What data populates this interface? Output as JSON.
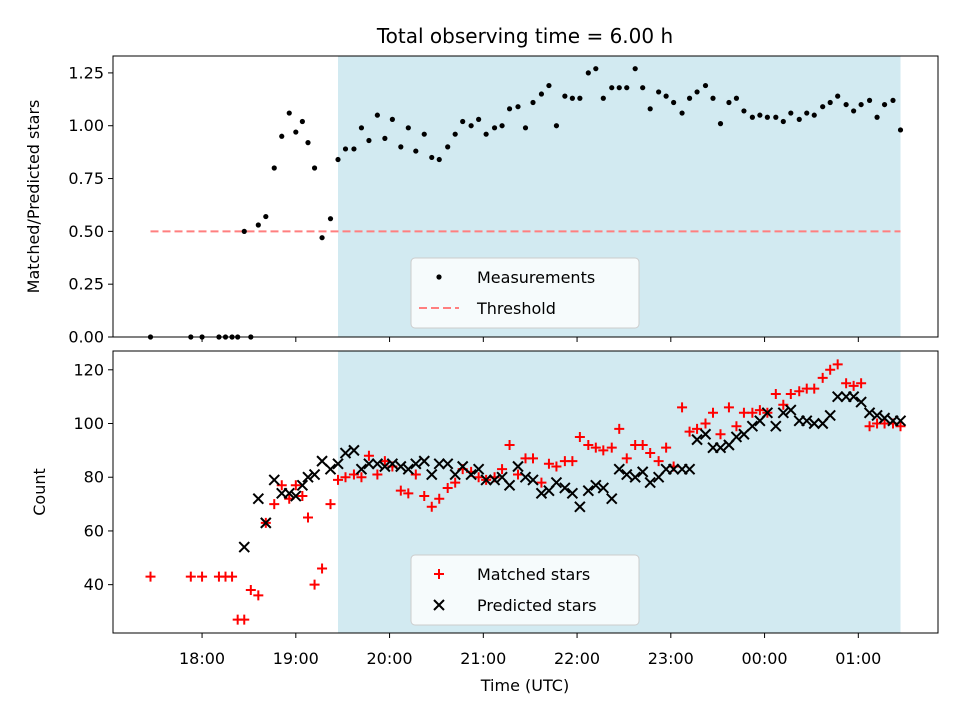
{
  "chart_data": {
    "title": "Total observing time = 6.00 h",
    "xlabel": "Time (UTC)",
    "x_ticks": [
      "18:00",
      "19:00",
      "20:00",
      "21:00",
      "22:00",
      "23:00",
      "00:00",
      "01:00"
    ],
    "x_range_hours": [
      17.05,
      25.85
    ],
    "shaded_span_hours": [
      19.45,
      25.45
    ],
    "shade_color": "#add8e6",
    "charts": [
      {
        "type": "scatter",
        "ylabel": "Matched/Predicted stars",
        "ylim": [
          0,
          1.33
        ],
        "yticks": [
          0.0,
          0.25,
          0.5,
          0.75,
          1.0,
          1.25
        ],
        "ytick_labels": [
          "0.00",
          "0.25",
          "0.50",
          "0.75",
          "1.00",
          "1.25"
        ],
        "legend_location": "lower-center",
        "threshold": {
          "name": "Threshold",
          "value": 0.5,
          "x_range": [
            17.45,
            25.45
          ],
          "color": "#ff7f7f"
        },
        "series": [
          {
            "name": "Measurements",
            "marker": "dot",
            "color": "#000000",
            "x": [
              17.45,
              17.88,
              18.0,
              18.18,
              18.25,
              18.32,
              18.38,
              18.45,
              18.52,
              18.6,
              18.68,
              18.77,
              18.85,
              18.93,
              19.0,
              19.07,
              19.13,
              19.2,
              19.28,
              19.37,
              19.45,
              19.53,
              19.62,
              19.7,
              19.78,
              19.87,
              19.95,
              20.03,
              20.12,
              20.2,
              20.28,
              20.37,
              20.45,
              20.53,
              20.62,
              20.7,
              20.78,
              20.87,
              20.95,
              21.03,
              21.12,
              21.2,
              21.28,
              21.37,
              21.45,
              21.53,
              21.62,
              21.7,
              21.78,
              21.87,
              21.95,
              22.03,
              22.12,
              22.2,
              22.28,
              22.37,
              22.45,
              22.53,
              22.62,
              22.7,
              22.78,
              22.87,
              22.95,
              23.03,
              23.12,
              23.2,
              23.28,
              23.37,
              23.45,
              23.53,
              23.62,
              23.7,
              23.78,
              23.87,
              23.95,
              24.03,
              24.12,
              24.2,
              24.28,
              24.37,
              24.45,
              24.53,
              24.62,
              24.7,
              24.78,
              24.87,
              24.95,
              25.03,
              25.12,
              25.2,
              25.28,
              25.37,
              25.45
            ],
            "y": [
              0.0,
              0.0,
              0.0,
              0.0,
              0.0,
              0.0,
              0.0,
              0.5,
              0.0,
              0.53,
              0.57,
              0.8,
              0.95,
              1.06,
              0.97,
              1.02,
              0.92,
              0.8,
              0.47,
              0.56,
              0.84,
              0.89,
              0.89,
              0.99,
              0.93,
              1.05,
              0.94,
              1.03,
              0.9,
              0.99,
              0.88,
              0.96,
              0.85,
              0.84,
              0.9,
              0.96,
              1.02,
              1.0,
              1.03,
              0.96,
              0.99,
              1.0,
              1.08,
              1.09,
              0.99,
              1.11,
              1.15,
              1.19,
              1.0,
              1.14,
              1.13,
              1.13,
              1.25,
              1.27,
              1.13,
              1.18,
              1.18,
              1.18,
              1.27,
              1.18,
              1.08,
              1.16,
              1.14,
              1.11,
              1.06,
              1.13,
              1.16,
              1.19,
              1.13,
              1.01,
              1.11,
              1.13,
              1.07,
              1.04,
              1.05,
              1.04,
              1.04,
              1.02,
              1.06,
              1.03,
              1.06,
              1.05,
              1.09,
              1.11,
              1.14,
              1.1,
              1.07,
              1.1,
              1.12,
              1.04,
              1.1,
              1.12,
              0.98
            ]
          }
        ]
      },
      {
        "type": "scatter",
        "ylabel": "Count",
        "ylim": [
          22,
          127
        ],
        "yticks": [
          40,
          60,
          80,
          100,
          120
        ],
        "ytick_labels": [
          "40",
          "60",
          "80",
          "100",
          "120"
        ],
        "legend_location": "lower-center",
        "series": [
          {
            "name": "Matched stars",
            "marker": "plus",
            "color": "#ff0000",
            "x": [
              17.45,
              17.88,
              18.0,
              18.18,
              18.25,
              18.32,
              18.38,
              18.45,
              18.52,
              18.6,
              18.68,
              18.77,
              18.85,
              18.93,
              19.0,
              19.07,
              19.13,
              19.2,
              19.28,
              19.37,
              19.45,
              19.53,
              19.62,
              19.7,
              19.78,
              19.87,
              19.95,
              20.03,
              20.12,
              20.2,
              20.28,
              20.37,
              20.45,
              20.53,
              20.62,
              20.7,
              20.78,
              20.87,
              20.95,
              21.03,
              21.12,
              21.2,
              21.28,
              21.37,
              21.45,
              21.53,
              21.62,
              21.7,
              21.78,
              21.87,
              21.95,
              22.03,
              22.12,
              22.2,
              22.28,
              22.37,
              22.45,
              22.53,
              22.62,
              22.7,
              22.78,
              22.87,
              22.95,
              23.03,
              23.12,
              23.2,
              23.28,
              23.37,
              23.45,
              23.53,
              23.62,
              23.7,
              23.78,
              23.87,
              23.95,
              24.03,
              24.12,
              24.2,
              24.28,
              24.37,
              24.45,
              24.53,
              24.62,
              24.7,
              24.78,
              24.87,
              24.95,
              25.03,
              25.12,
              25.2,
              25.28,
              25.37,
              25.45
            ],
            "y": [
              43,
              43,
              43,
              43,
              43,
              43,
              27,
              27,
              38,
              36,
              63,
              70,
              77,
              72,
              77,
              73,
              65,
              40,
              46,
              70,
              79,
              80,
              81,
              80,
              88,
              81,
              86,
              84,
              75,
              74,
              81,
              73,
              69,
              72,
              76,
              78,
              83,
              82,
              80,
              79,
              80,
              83,
              92,
              81,
              87,
              87,
              78,
              85,
              84,
              86,
              86,
              95,
              92,
              91,
              90,
              91,
              98,
              87,
              92,
              92,
              89,
              86,
              91,
              84,
              106,
              97,
              98,
              100,
              104,
              96,
              106,
              99,
              104,
              104,
              105,
              104,
              111,
              107,
              111,
              112,
              113,
              113,
              117,
              120,
              122,
              115,
              114,
              115,
              99,
              100,
              100,
              100,
              99
            ],
            "y_note_unused": []
          },
          {
            "name": "Predicted stars",
            "marker": "x",
            "color": "#000000",
            "x": [
              18.45,
              18.6,
              18.68,
              18.77,
              18.85,
              18.93,
              19.0,
              19.07,
              19.13,
              19.2,
              19.28,
              19.37,
              19.45,
              19.53,
              19.62,
              19.7,
              19.78,
              19.87,
              19.95,
              20.03,
              20.12,
              20.2,
              20.28,
              20.37,
              20.45,
              20.53,
              20.62,
              20.7,
              20.78,
              20.87,
              20.95,
              21.03,
              21.12,
              21.2,
              21.28,
              21.37,
              21.45,
              21.53,
              21.62,
              21.7,
              21.78,
              21.87,
              21.95,
              22.03,
              22.12,
              22.2,
              22.28,
              22.37,
              22.45,
              22.53,
              22.62,
              22.7,
              22.78,
              22.87,
              22.95,
              23.03,
              23.12,
              23.2,
              23.28,
              23.37,
              23.45,
              23.53,
              23.62,
              23.7,
              23.78,
              23.87,
              23.95,
              24.03,
              24.12,
              24.2,
              24.28,
              24.37,
              24.45,
              24.53,
              24.62,
              24.7,
              24.78,
              24.87,
              24.95,
              25.03,
              25.12,
              25.2,
              25.28,
              25.37,
              25.45
            ],
            "y": [
              54,
              72,
              63,
              79,
              74,
              74,
              73,
              77,
              80,
              81,
              86,
              83,
              85,
              89,
              90,
              83,
              85,
              85,
              84,
              85,
              84,
              83,
              85,
              86,
              81,
              85,
              85,
              81,
              84,
              81,
              83,
              79,
              79,
              80,
              77,
              84,
              80,
              79,
              74,
              75,
              78,
              76,
              74,
              69,
              75,
              77,
              76,
              72,
              83,
              81,
              80,
              82,
              78,
              80,
              83,
              83,
              83,
              83,
              94,
              96,
              91,
              91,
              92,
              95,
              96,
              99,
              101,
              104,
              99,
              104,
              105,
              101,
              101,
              100,
              100,
              103,
              110,
              110,
              110,
              108,
              104,
              103,
              102,
              101,
              101
            ]
          }
        ]
      }
    ]
  }
}
